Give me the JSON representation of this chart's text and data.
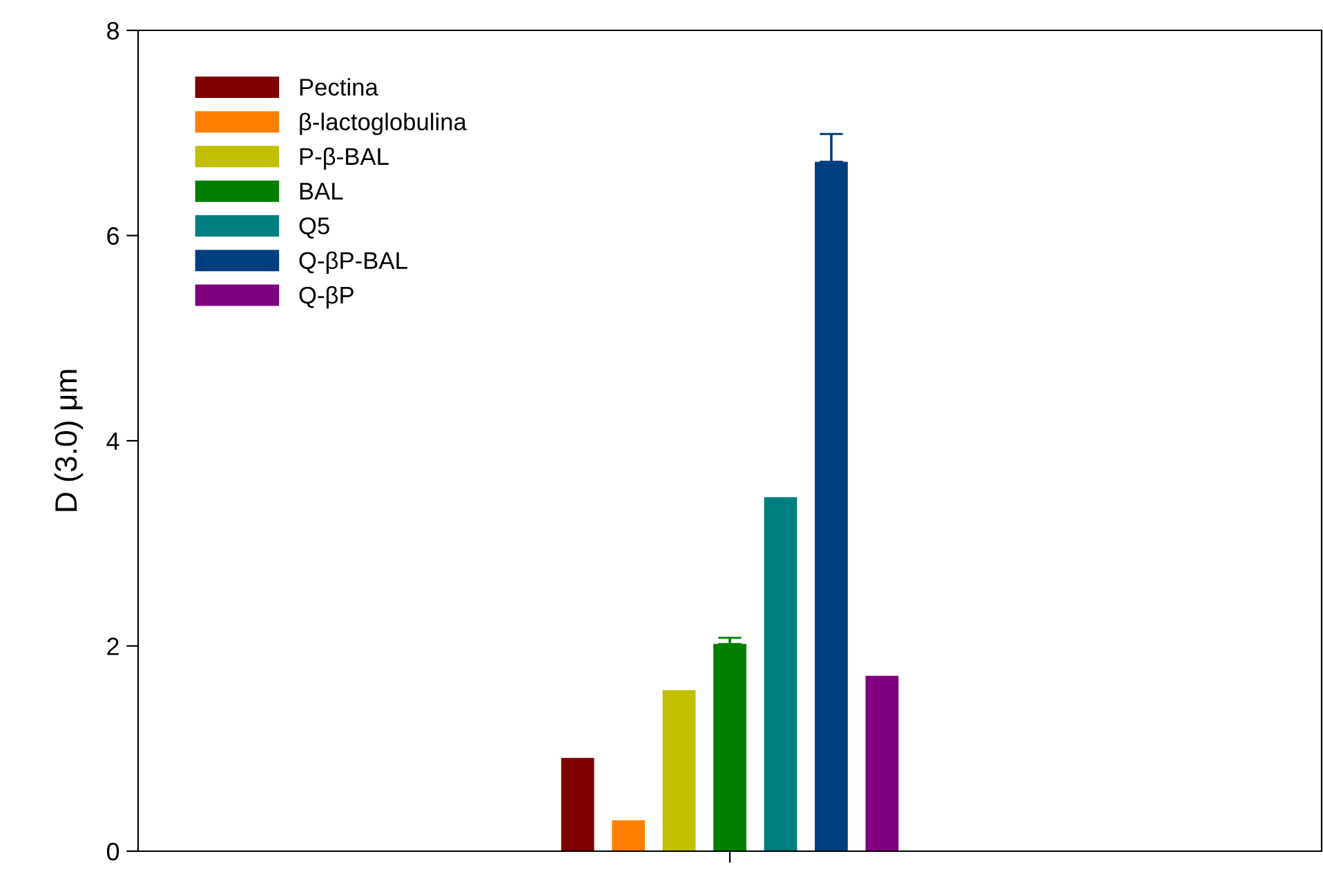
{
  "chart_data": {
    "type": "bar",
    "ylabel": "D (3.0) μm",
    "categories": [
      null
    ],
    "series": [
      {
        "name": "Pectina",
        "color": "#7f0000",
        "values": [
          0.91
        ]
      },
      {
        "name": "β-lactoglobulina",
        "color": "#ff8000",
        "values": [
          0.3
        ]
      },
      {
        "name": "P-β-BAL",
        "color": "#c0c000",
        "values": [
          1.57
        ]
      },
      {
        "name": "BAL",
        "color": "#007f00",
        "values": [
          2.02
        ],
        "errors": [
          0.06
        ]
      },
      {
        "name": "Q5",
        "color": "#007f7f",
        "values": [
          3.45
        ]
      },
      {
        "name": "Q-βP-BAL",
        "color": "#003f7f",
        "values": [
          6.72
        ],
        "errors": [
          0.27
        ]
      },
      {
        "name": "Q-βP",
        "color": "#7f007f",
        "values": [
          1.71
        ]
      }
    ],
    "ylim": [
      0,
      8
    ],
    "yticks": [
      0,
      2,
      4,
      6,
      8
    ],
    "grid": false,
    "legend": "top left"
  }
}
